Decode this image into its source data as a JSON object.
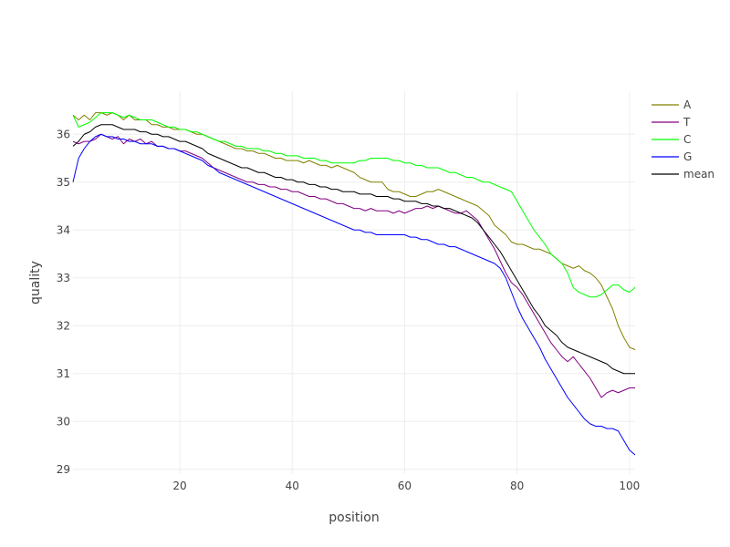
{
  "chart_data": {
    "type": "line",
    "xlabel": "position",
    "ylabel": "quality",
    "xlim": [
      1,
      101
    ],
    "ylim": [
      28.9,
      36.9
    ],
    "xticks": [
      20,
      40,
      60,
      80,
      100
    ],
    "yticks": [
      29,
      30,
      31,
      32,
      33,
      34,
      35,
      36
    ],
    "grid": true,
    "legend_position": "top-right",
    "x": [
      1,
      2,
      3,
      4,
      5,
      6,
      7,
      8,
      9,
      10,
      11,
      12,
      13,
      14,
      15,
      16,
      17,
      18,
      19,
      20,
      21,
      22,
      23,
      24,
      25,
      26,
      27,
      28,
      29,
      30,
      31,
      32,
      33,
      34,
      35,
      36,
      37,
      38,
      39,
      40,
      41,
      42,
      43,
      44,
      45,
      46,
      47,
      48,
      49,
      50,
      51,
      52,
      53,
      54,
      55,
      56,
      57,
      58,
      59,
      60,
      61,
      62,
      63,
      64,
      65,
      66,
      67,
      68,
      69,
      70,
      71,
      72,
      73,
      74,
      75,
      76,
      77,
      78,
      79,
      80,
      81,
      82,
      83,
      84,
      85,
      86,
      87,
      88,
      89,
      90,
      91,
      92,
      93,
      94,
      95,
      96,
      97,
      98,
      99,
      100,
      101
    ],
    "series": [
      {
        "name": "A",
        "color": "#808000",
        "values": [
          36.4,
          36.3,
          36.4,
          36.3,
          36.45,
          36.45,
          36.4,
          36.45,
          36.4,
          36.3,
          36.4,
          36.3,
          36.3,
          36.3,
          36.2,
          36.2,
          36.15,
          36.15,
          36.1,
          36.1,
          36.1,
          36.05,
          36.0,
          36.0,
          35.95,
          35.9,
          35.85,
          35.8,
          35.75,
          35.7,
          35.7,
          35.65,
          35.65,
          35.6,
          35.6,
          35.55,
          35.5,
          35.5,
          35.45,
          35.45,
          35.45,
          35.4,
          35.45,
          35.4,
          35.35,
          35.35,
          35.3,
          35.35,
          35.3,
          35.25,
          35.2,
          35.1,
          35.05,
          35.0,
          35.0,
          35.0,
          34.85,
          34.8,
          34.8,
          34.75,
          34.7,
          34.7,
          34.75,
          34.8,
          34.8,
          34.85,
          34.8,
          34.75,
          34.7,
          34.65,
          34.6,
          34.55,
          34.5,
          34.4,
          34.3,
          34.1,
          34.0,
          33.9,
          33.75,
          33.7,
          33.7,
          33.65,
          33.6,
          33.6,
          33.55,
          33.5,
          33.4,
          33.3,
          33.25,
          33.2,
          33.25,
          33.15,
          33.1,
          33.0,
          32.85,
          32.6,
          32.35,
          32.0,
          31.75,
          31.55,
          31.5
        ]
      },
      {
        "name": "T",
        "color": "#800080",
        "values": [
          35.85,
          35.8,
          35.85,
          35.85,
          35.9,
          36.0,
          35.95,
          35.9,
          35.95,
          35.8,
          35.9,
          35.85,
          35.9,
          35.8,
          35.85,
          35.75,
          35.75,
          35.7,
          35.7,
          35.65,
          35.65,
          35.6,
          35.55,
          35.5,
          35.4,
          35.3,
          35.25,
          35.2,
          35.15,
          35.1,
          35.05,
          35.0,
          35.0,
          34.95,
          34.95,
          34.9,
          34.9,
          34.85,
          34.85,
          34.8,
          34.8,
          34.75,
          34.7,
          34.7,
          34.65,
          34.65,
          34.6,
          34.55,
          34.55,
          34.5,
          34.45,
          34.45,
          34.4,
          34.45,
          34.4,
          34.4,
          34.4,
          34.35,
          34.4,
          34.35,
          34.4,
          34.45,
          34.45,
          34.5,
          34.45,
          34.5,
          34.45,
          34.4,
          34.35,
          34.35,
          34.4,
          34.3,
          34.2,
          34.0,
          33.8,
          33.6,
          33.35,
          33.1,
          32.9,
          32.8,
          32.65,
          32.45,
          32.25,
          32.05,
          31.85,
          31.65,
          31.5,
          31.35,
          31.25,
          31.35,
          31.2,
          31.05,
          30.9,
          30.7,
          30.5,
          30.6,
          30.65,
          30.6,
          30.65,
          30.7,
          30.7
        ]
      },
      {
        "name": "C",
        "color": "#00ff00",
        "values": [
          36.4,
          36.15,
          36.2,
          36.25,
          36.35,
          36.45,
          36.45,
          36.45,
          36.4,
          36.35,
          36.4,
          36.35,
          36.3,
          36.3,
          36.3,
          36.25,
          36.2,
          36.15,
          36.15,
          36.1,
          36.1,
          36.05,
          36.05,
          36.0,
          35.95,
          35.9,
          35.85,
          35.85,
          35.8,
          35.75,
          35.75,
          35.7,
          35.7,
          35.7,
          35.65,
          35.65,
          35.6,
          35.6,
          35.55,
          35.55,
          35.55,
          35.5,
          35.5,
          35.5,
          35.45,
          35.45,
          35.4,
          35.4,
          35.4,
          35.4,
          35.4,
          35.45,
          35.45,
          35.5,
          35.5,
          35.5,
          35.5,
          35.45,
          35.45,
          35.4,
          35.4,
          35.35,
          35.35,
          35.3,
          35.3,
          35.3,
          35.25,
          35.2,
          35.2,
          35.15,
          35.1,
          35.1,
          35.05,
          35.0,
          35.0,
          34.95,
          34.9,
          34.85,
          34.8,
          34.6,
          34.4,
          34.2,
          34.0,
          33.85,
          33.7,
          33.5,
          33.4,
          33.3,
          33.1,
          32.8,
          32.7,
          32.65,
          32.6,
          32.6,
          32.65,
          32.75,
          32.85,
          32.85,
          32.75,
          32.7,
          32.8
        ]
      },
      {
        "name": "G",
        "color": "#0000ff",
        "values": [
          35.0,
          35.5,
          35.7,
          35.85,
          35.95,
          36.0,
          35.95,
          35.95,
          35.9,
          35.9,
          35.85,
          35.85,
          35.8,
          35.8,
          35.8,
          35.75,
          35.75,
          35.7,
          35.7,
          35.65,
          35.6,
          35.55,
          35.5,
          35.45,
          35.35,
          35.3,
          35.2,
          35.15,
          35.1,
          35.05,
          35.0,
          34.95,
          34.9,
          34.85,
          34.8,
          34.75,
          34.7,
          34.65,
          34.6,
          34.55,
          34.5,
          34.45,
          34.4,
          34.35,
          34.3,
          34.25,
          34.2,
          34.15,
          34.1,
          34.05,
          34.0,
          34.0,
          33.95,
          33.95,
          33.9,
          33.9,
          33.9,
          33.9,
          33.9,
          33.9,
          33.85,
          33.85,
          33.8,
          33.8,
          33.75,
          33.7,
          33.7,
          33.65,
          33.65,
          33.6,
          33.55,
          33.5,
          33.45,
          33.4,
          33.35,
          33.3,
          33.2,
          33.0,
          32.7,
          32.4,
          32.15,
          31.95,
          31.75,
          31.55,
          31.3,
          31.1,
          30.9,
          30.7,
          30.5,
          30.35,
          30.2,
          30.05,
          29.95,
          29.9,
          29.9,
          29.85,
          29.85,
          29.8,
          29.6,
          29.4,
          29.3
        ]
      },
      {
        "name": "mean",
        "color": "#000000",
        "values": [
          35.75,
          35.85,
          36.0,
          36.05,
          36.15,
          36.2,
          36.2,
          36.2,
          36.15,
          36.1,
          36.1,
          36.1,
          36.05,
          36.05,
          36.0,
          36.0,
          35.95,
          35.95,
          35.9,
          35.85,
          35.85,
          35.8,
          35.75,
          35.7,
          35.6,
          35.55,
          35.5,
          35.45,
          35.4,
          35.35,
          35.3,
          35.3,
          35.25,
          35.2,
          35.2,
          35.15,
          35.1,
          35.1,
          35.05,
          35.05,
          35.0,
          35.0,
          34.95,
          34.95,
          34.9,
          34.9,
          34.85,
          34.85,
          34.8,
          34.8,
          34.8,
          34.75,
          34.75,
          34.75,
          34.7,
          34.7,
          34.7,
          34.65,
          34.65,
          34.6,
          34.6,
          34.6,
          34.55,
          34.55,
          34.5,
          34.5,
          34.45,
          34.45,
          34.4,
          34.35,
          34.3,
          34.25,
          34.15,
          34.0,
          33.85,
          33.7,
          33.55,
          33.35,
          33.15,
          32.95,
          32.75,
          32.55,
          32.35,
          32.2,
          32.0,
          31.9,
          31.8,
          31.65,
          31.55,
          31.5,
          31.45,
          31.4,
          31.35,
          31.3,
          31.25,
          31.2,
          31.1,
          31.05,
          31.0,
          31.0,
          31.0
        ]
      }
    ]
  }
}
